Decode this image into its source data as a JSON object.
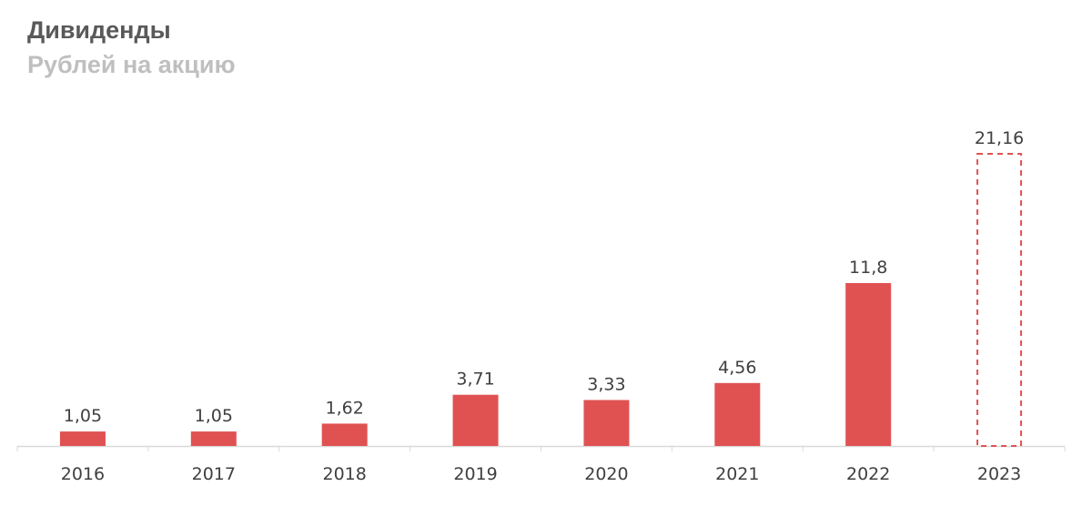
{
  "chart_data": {
    "type": "bar",
    "title": "Дивиденды",
    "subtitle": "Рублей на акцию",
    "categories": [
      "2016",
      "2017",
      "2018",
      "2019",
      "2020",
      "2021",
      "2022",
      "2023"
    ],
    "values": [
      1.05,
      1.05,
      1.62,
      3.71,
      3.33,
      4.56,
      11.8,
      21.16
    ],
    "value_labels": [
      "1,05",
      "1,05",
      "1,62",
      "3,71",
      "3,33",
      "4,56",
      "11,8",
      "21,16"
    ],
    "styles": [
      "solid",
      "solid",
      "solid",
      "solid",
      "solid",
      "solid",
      "solid",
      "dashed-outline"
    ],
    "bar_color": "#e05252",
    "axis_color": "#d9d9d9",
    "ylim": [
      0,
      21.16
    ],
    "grid": false,
    "legend": "none"
  }
}
